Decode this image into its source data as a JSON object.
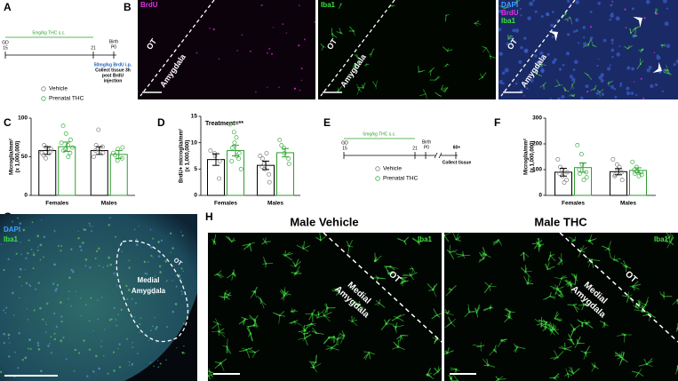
{
  "panel_labels": [
    "A",
    "B",
    "C",
    "D",
    "E",
    "F",
    "G",
    "H"
  ],
  "timeline_a": {
    "gd": "GD",
    "gd_day": "15",
    "treatment": "5mg/kg THC s.c.",
    "weaning": "21",
    "birth": "Birth",
    "birth_day": "P0",
    "injection": "50mg/kg BrdU i.p.",
    "collect": [
      "Collect tissue 3h",
      "post BrdU",
      "injection"
    ]
  },
  "legend_a": [
    "Vehicle",
    "Prenatal THC"
  ],
  "images_b": [
    {
      "channels": [
        {
          "text": "BrdU",
          "color": "#e030e0"
        }
      ],
      "ot": "OT",
      "region": "Amygdala",
      "background": "#0c020c",
      "cell_color": "#d020d0"
    },
    {
      "channels": [
        {
          "text": "Iba1",
          "color": "#40e040"
        }
      ],
      "ot": "OT",
      "region": "Amygdala",
      "background": "#010601",
      "cell_color": "#30c030"
    },
    {
      "channels": [
        {
          "text": "DAPI",
          "color": "#40a0ff"
        },
        {
          "text": "BrdU",
          "color": "#e030e0"
        },
        {
          "text": "Iba1",
          "color": "#40e040"
        }
      ],
      "ot": "OT",
      "region": "Amygdala",
      "background": "#1a2a66",
      "cell_color": "#50d050"
    }
  ],
  "charts": [
    {
      "type": "bar",
      "y_label": [
        "Microglia/mm²",
        "(x 1,000,000)"
      ],
      "categories": [
        "Females",
        "Males"
      ],
      "ylim": [
        0,
        100
      ],
      "yticks": [
        0,
        50,
        100
      ],
      "series": [
        {
          "color": "#000000",
          "point_color": "#808080",
          "values": [
            58,
            58
          ],
          "errors": [
            5,
            5
          ],
          "points": [
            [
              55,
              48,
              62,
              57,
              60,
              52,
              65
            ],
            [
              50,
              60,
              85,
              63,
              55,
              58,
              65
            ]
          ]
        },
        {
          "color": "#2e9e2e",
          "point_color": "#3cb043",
          "values": [
            63,
            53
          ],
          "errors": [
            6,
            5
          ],
          "points": [
            [
              68,
              60,
              80,
              55,
              72,
              90,
              58,
              65,
              50,
              62
            ],
            [
              55,
              45,
              60,
              48,
              62,
              52
            ]
          ]
        }
      ]
    },
    {
      "type": "bar",
      "y_label": [
        "BrdU+ microglia/mm²",
        "(x 1,000,000)"
      ],
      "annotation": "Treatment=**",
      "categories": [
        "Females",
        "Males"
      ],
      "ylim": [
        0,
        15
      ],
      "yticks": [
        0,
        5,
        10,
        15
      ],
      "series": [
        {
          "color": "#000000",
          "point_color": "#808080",
          "values": [
            6.8,
            5.7
          ],
          "errors": [
            1.1,
            0.8
          ],
          "points": [
            [
              8.5,
              8,
              7.5,
              3.2,
              6.5
            ],
            [
              7.5,
              6,
              5,
              4,
              2.5,
              5.5,
              7,
              8
            ]
          ]
        },
        {
          "color": "#2e9e2e",
          "point_color": "#3cb043",
          "values": [
            8.5,
            8.1
          ],
          "errors": [
            1,
            0.8
          ],
          "points": [
            [
              13.5,
              12,
              10,
              7,
              8,
              6.5,
              9,
              11,
              7.5,
              5
            ],
            [
              10.5,
              9,
              8,
              7,
              6,
              9.5
            ]
          ]
        }
      ]
    },
    {
      "type": "bar",
      "y_label": [
        "Microglia/mm²",
        "(x 1,000,000)"
      ],
      "categories": [
        "Females",
        "Males"
      ],
      "ylim": [
        0,
        300
      ],
      "yticks": [
        0,
        100,
        200,
        300
      ],
      "series": [
        {
          "color": "#000000",
          "point_color": "#808080",
          "values": [
            90,
            92
          ],
          "errors": [
            15,
            12
          ],
          "points": [
            [
              140,
              100,
              75,
              60,
              90,
              85,
              110,
              50
            ],
            [
              140,
              120,
              100,
              90,
              60,
              75,
              80,
              110
            ]
          ]
        },
        {
          "color": "#2e9e2e",
          "point_color": "#3cb043",
          "values": [
            108,
            97
          ],
          "errors": [
            18,
            10
          ],
          "points": [
            [
              195,
              160,
              120,
              90,
              70,
              100,
              85,
              60
            ],
            [
              130,
              110,
              95,
              90,
              80,
              100,
              85,
              75
            ]
          ]
        }
      ]
    }
  ],
  "timeline_e": {
    "gd": "GD",
    "gd_day": "15",
    "treatment": "5mg/kg THC s.c.",
    "weaning": "21",
    "birth": "Birth",
    "birth_day": "P0",
    "adult": "60+",
    "collect": "Collect tissue"
  },
  "legend_e": [
    "Vehicle",
    "Prenatal THC"
  ],
  "image_g": {
    "channels": [
      {
        "text": "DAPI",
        "color": "#40a0ff"
      },
      {
        "text": "Iba1",
        "color": "#40e040"
      }
    ],
    "region": [
      "Medial",
      "Amygdala"
    ],
    "ot": "OT"
  },
  "images_h": [
    {
      "title": "Male Vehicle",
      "channel": "Iba1",
      "ot": "OT",
      "region": [
        "Medial",
        "Amygdala"
      ]
    },
    {
      "title": "Male THC",
      "channel": "Iba1",
      "ot": "OT",
      "region": [
        "Medial",
        "Amygdala"
      ]
    }
  ]
}
